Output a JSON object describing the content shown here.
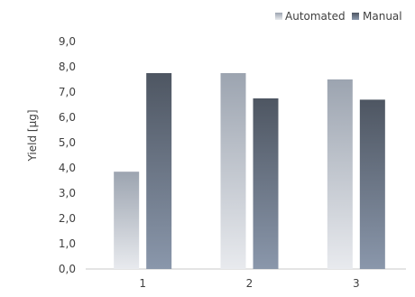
{
  "chart_data": {
    "type": "bar",
    "title": "",
    "xlabel": "",
    "ylabel": "Yield [µg]",
    "categories": [
      "1",
      "2",
      "3"
    ],
    "series": [
      {
        "name": "Automated",
        "values": [
          3.85,
          7.75,
          7.5
        ]
      },
      {
        "name": "Manual",
        "values": [
          7.75,
          6.75,
          6.7
        ]
      }
    ],
    "ylim": [
      0,
      9
    ],
    "yticks": [
      "0,0",
      "1,0",
      "2,0",
      "3,0",
      "4,0",
      "5,0",
      "6,0",
      "7,0",
      "8,0",
      "9,0"
    ],
    "grid": false,
    "legend_position": "top-right",
    "colors": {
      "automated_top": "#9ca4b0",
      "automated_bottom": "#e8eaee",
      "manual_top": "#4e5662",
      "manual_bottom": "#8a97ab",
      "axis": "#c8c8c8",
      "text": "#404040"
    }
  }
}
